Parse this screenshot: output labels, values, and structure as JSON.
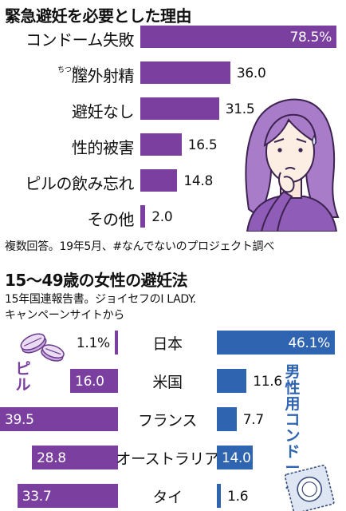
{
  "colors": {
    "purple": "#7b3fa0",
    "blue": "#2f64b0",
    "lilac": "#d9c3ec",
    "lilac_stroke": "#8a5aa8"
  },
  "top": {
    "title": "緊急避妊を必要とした理由",
    "note": "複数回答。19年5月、#なんでないのプロジェクト調べ",
    "ruby": "ちつがい",
    "illustration_icon": "worried-woman-icon"
  },
  "bottom": {
    "title": "15〜49歳の女性の避妊法",
    "note_line1": "15年国連報告書。ジョイセフのI LADY.",
    "note_line2": "キャンペーンサイトから",
    "pill_label": "ピル",
    "condom_label": "男性用コンドーム",
    "pill_icon": "pill-tablets-icon",
    "condom_icon": "condom-package-icon"
  },
  "chart_data": [
    {
      "type": "bar",
      "orientation": "horizontal",
      "title": "緊急避妊を必要とした理由",
      "categories": [
        "コンドーム失敗",
        "膣外射精",
        "避妊なし",
        "性的被害",
        "ピルの飲み忘れ",
        "その他"
      ],
      "values": [
        78.5,
        36.0,
        31.5,
        16.5,
        14.8,
        2.0
      ],
      "labels": [
        "78.5%",
        "36.0",
        "31.5",
        "16.5",
        "14.8",
        "2.0"
      ],
      "unit": "%",
      "grid": false,
      "legend": "none"
    },
    {
      "type": "bar",
      "orientation": "horizontal-diverging",
      "title": "15〜49歳の女性の避妊法",
      "categories": [
        "日本",
        "米国",
        "フランス",
        "オーストラリア",
        "タイ"
      ],
      "series": [
        {
          "name": "ピル",
          "values": [
            1.1,
            16.0,
            39.5,
            28.8,
            33.7
          ],
          "labels": [
            "1.1%",
            "16.0",
            "39.5",
            "28.8",
            "33.7"
          ]
        },
        {
          "name": "男性用コンドーム",
          "values": [
            46.1,
            11.6,
            7.7,
            14.0,
            1.6
          ],
          "labels": [
            "46.1%",
            "11.6",
            "7.7",
            "14.0",
            "1.6"
          ]
        }
      ],
      "unit": "%",
      "grid": false,
      "legend": "side-labels"
    }
  ]
}
